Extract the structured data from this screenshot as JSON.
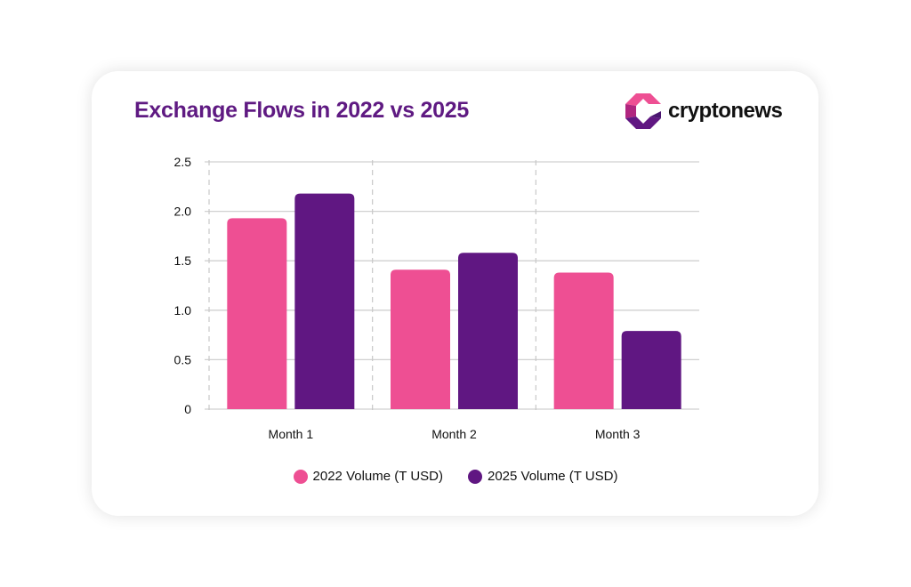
{
  "brand": {
    "name": "cryptonews"
  },
  "colors": {
    "series_2022": "#ee4f93",
    "series_2025": "#601782",
    "title": "#5f1a82",
    "grid": "#d0d0d0"
  },
  "chart_data": {
    "type": "bar",
    "title": "Exchange Flows in 2022 vs 2025",
    "xlabel": "",
    "ylabel": "",
    "categories": [
      "Month 1",
      "Month 2",
      "Month 3"
    ],
    "series": [
      {
        "name": "2022 Volume (T USD)",
        "values": [
          1.93,
          1.41,
          1.38
        ]
      },
      {
        "name": "2025 Volume (T USD)",
        "values": [
          2.18,
          1.58,
          0.79
        ]
      }
    ],
    "ylim": [
      0,
      2.5
    ],
    "yticks": [
      "0",
      "0.5",
      "1.0",
      "1.5",
      "2.0",
      "2.5"
    ],
    "grid": "horizontal solid, vertical dashed between categories",
    "legend": "bottom-center"
  }
}
